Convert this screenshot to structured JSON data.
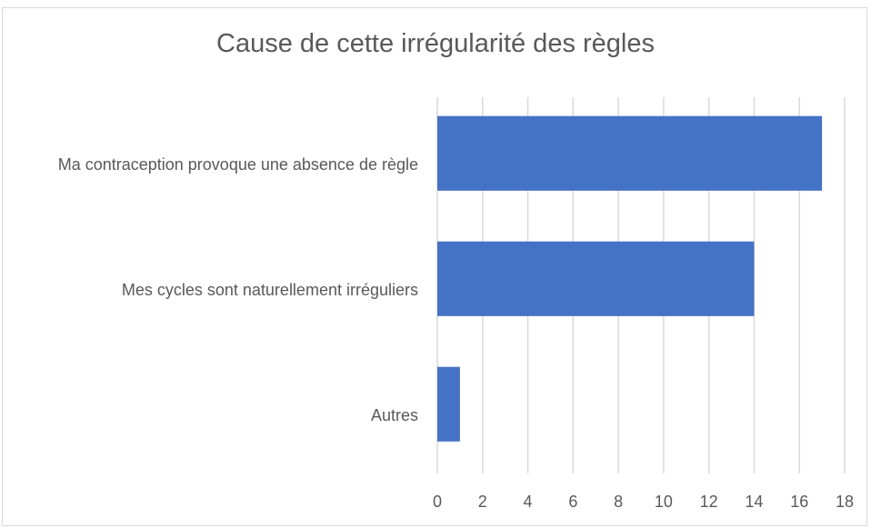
{
  "chart_data": {
    "type": "bar",
    "orientation": "horizontal",
    "title": "Cause de cette irrégularité des règles",
    "categories": [
      "Ma contraception provoque une absence de règle",
      "Mes cycles sont naturellement irréguliers",
      "Autres"
    ],
    "values": [
      17,
      14,
      1
    ],
    "color": "#4472c4",
    "xlim": [
      0,
      18
    ],
    "xticks": [
      0,
      2,
      4,
      6,
      8,
      10,
      12,
      14,
      16,
      18
    ],
    "grid": true
  }
}
